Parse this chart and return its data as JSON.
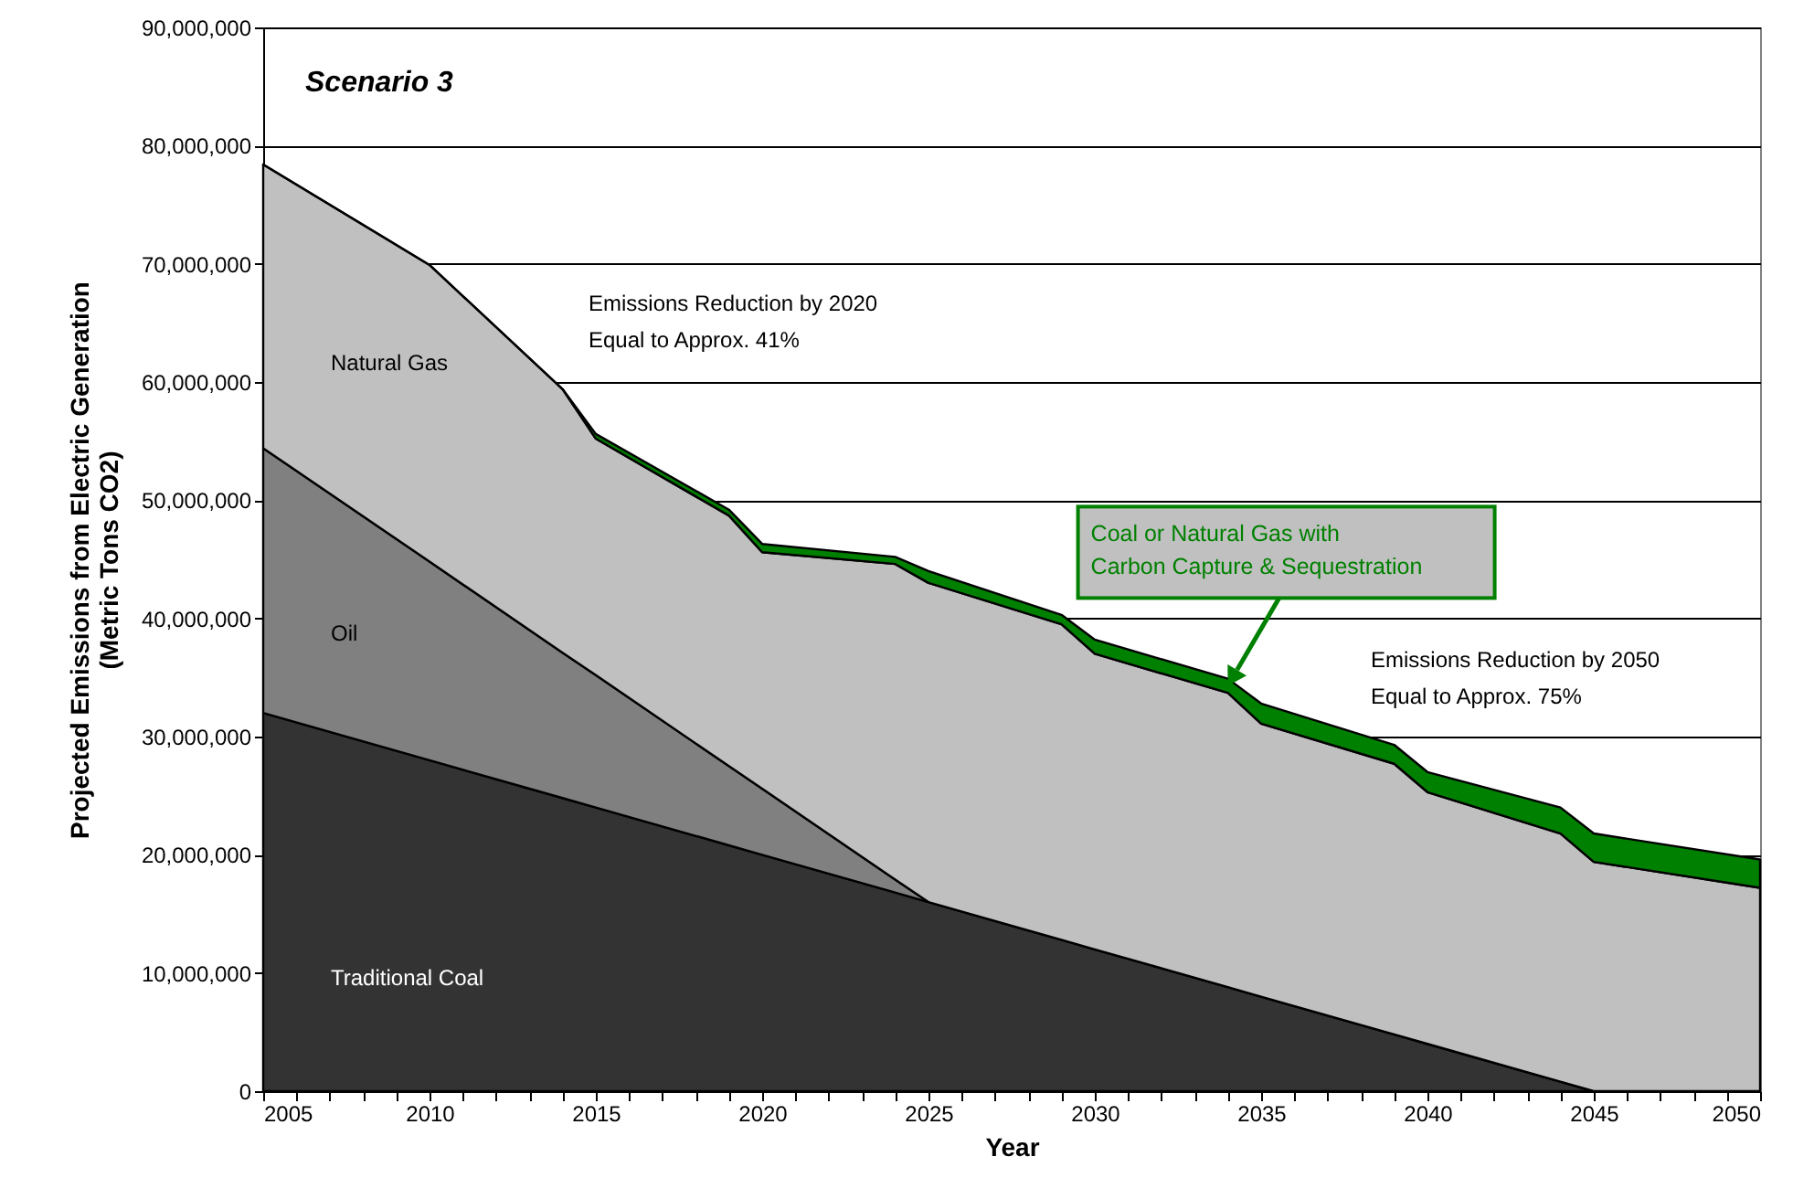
{
  "chart_data": {
    "type": "area",
    "title": "Scenario 3",
    "xlabel": "Year",
    "ylabel": "Projected Emissions from Electric Generation\n(Metric Tons CO2)",
    "stacked": true,
    "grid": "y",
    "x": [
      2005,
      2010,
      2014,
      2015,
      2019,
      2020,
      2024,
      2025,
      2029,
      2030,
      2034,
      2035,
      2039,
      2040,
      2044,
      2045,
      2050
    ],
    "series": [
      {
        "name": "Traditional Coal",
        "color": "#333333",
        "values": [
          32000000,
          28000000,
          24800000,
          24000000,
          20800000,
          20000000,
          16800000,
          16000000,
          12800000,
          12000000,
          8800000,
          8000000,
          4800000,
          4000000,
          800000,
          0,
          0
        ]
      },
      {
        "name": "Oil",
        "color": "#808080",
        "values": [
          22400000,
          16800000,
          12300000,
          11200000,
          6700000,
          5600000,
          1100000,
          0,
          0,
          0,
          0,
          0,
          0,
          0,
          0,
          0,
          0
        ]
      },
      {
        "name": "Natural Gas",
        "color": "#c0c0c0",
        "values": [
          24000000,
          25100000,
          22300000,
          20000000,
          21200000,
          20000000,
          26700000,
          27000000,
          26700000,
          25000000,
          24900000,
          23100000,
          22900000,
          21300000,
          21000000,
          19400000,
          17200000
        ]
      },
      {
        "name": "Coal or Natural Gas with Carbon Capture & Sequestration",
        "color": "#008000",
        "values": [
          0,
          0,
          0,
          400000,
          500000,
          700000,
          600000,
          1000000,
          800000,
          1200000,
          1200000,
          1700000,
          1600000,
          1700000,
          2200000,
          2400000,
          2400000
        ]
      }
    ],
    "xlim": [
      2005,
      2050
    ],
    "xticks": [
      2005,
      {
        "value": 2006,
        "label": null
      },
      {
        "value": 2007,
        "label": null
      },
      {
        "value": 2008,
        "label": null
      },
      {
        "value": 2009,
        "label": null
      },
      2010,
      {
        "value": 2011,
        "label": null
      },
      {
        "value": 2012,
        "label": null
      },
      {
        "value": 2013,
        "label": null
      },
      {
        "value": 2014,
        "label": null
      },
      2015,
      {
        "value": 2016,
        "label": null
      },
      {
        "value": 2017,
        "label": null
      },
      {
        "value": 2018,
        "label": null
      },
      {
        "value": 2019,
        "label": null
      },
      2020,
      {
        "value": 2021,
        "label": null
      },
      {
        "value": 2022,
        "label": null
      },
      {
        "value": 2023,
        "label": null
      },
      {
        "value": 2024,
        "label": null
      },
      2025,
      {
        "value": 2026,
        "label": null
      },
      {
        "value": 2027,
        "label": null
      },
      {
        "value": 2028,
        "label": null
      },
      {
        "value": 2029,
        "label": null
      },
      2030,
      {
        "value": 2031,
        "label": null
      },
      {
        "value": 2032,
        "label": null
      },
      {
        "value": 2033,
        "label": null
      },
      {
        "value": 2034,
        "label": null
      },
      2035,
      {
        "value": 2036,
        "label": null
      },
      {
        "value": 2037,
        "label": null
      },
      {
        "value": 2038,
        "label": null
      },
      {
        "value": 2039,
        "label": null
      },
      2040,
      {
        "value": 2041,
        "label": null
      },
      {
        "value": 2042,
        "label": null
      },
      {
        "value": 2043,
        "label": null
      },
      {
        "value": 2044,
        "label": null
      },
      2045,
      {
        "value": 2046,
        "label": null
      },
      {
        "value": 2047,
        "label": null
      },
      {
        "value": 2048,
        "label": null
      },
      {
        "value": 2049,
        "label": null
      },
      2050
    ],
    "ylim": [
      0,
      90000000
    ],
    "yticks": [
      0,
      {
        "value": 10000000,
        "label": "10,000,000"
      },
      {
        "value": 20000000,
        "label": "20,000,000"
      },
      {
        "value": 30000000,
        "label": "30,000,000"
      },
      {
        "value": 40000000,
        "label": "40,000,000"
      },
      {
        "value": 50000000,
        "label": "50,000,000"
      },
      {
        "value": 60000000,
        "label": "60,000,000"
      },
      {
        "value": 70000000,
        "label": "70,000,000"
      },
      {
        "value": 80000000,
        "label": "80,000,000"
      },
      {
        "value": 90000000,
        "label": "90,000,000"
      }
    ],
    "annotations": [
      "Emissions Reduction by 2020",
      "Equal to Approx. 41%",
      "Emissions Reduction by 2050",
      "Equal to Approx. 75%"
    ]
  }
}
